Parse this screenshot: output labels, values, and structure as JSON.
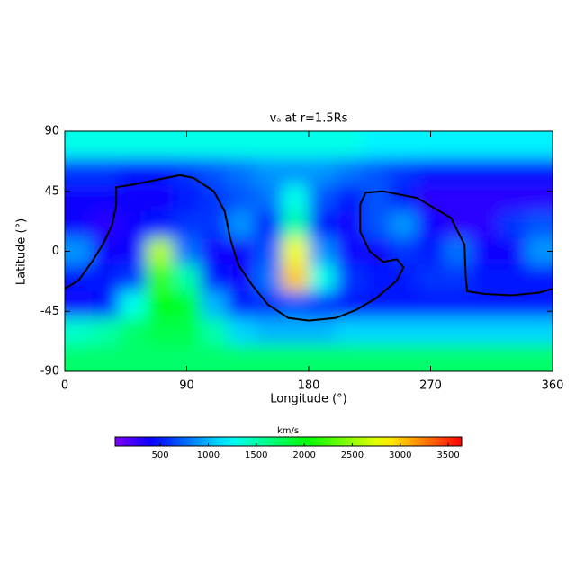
{
  "chart_data": {
    "type": "heatmap",
    "title": "vₐ at r=1.5Rs",
    "x_label": "Longitude (°)",
    "y_label": "Latitude (°)",
    "xlim": [
      0,
      360
    ],
    "ylim": [
      -90,
      90
    ],
    "xticks": [
      0,
      90,
      180,
      270,
      360
    ],
    "yticks": [
      -90,
      -45,
      0,
      45,
      90
    ],
    "x": [
      10,
      30,
      50,
      70,
      90,
      110,
      130,
      150,
      170,
      190,
      210,
      230,
      250,
      270,
      290,
      310,
      330,
      350
    ],
    "y": [
      80,
      60,
      40,
      20,
      0,
      -20,
      -40,
      -60,
      -80
    ],
    "values": [
      [
        1300,
        1300,
        1300,
        1300,
        1300,
        1300,
        1300,
        1300,
        1300,
        1300,
        1300,
        1200,
        1200,
        1200,
        1200,
        1200,
        1200,
        1200
      ],
      [
        600,
        600,
        500,
        500,
        600,
        700,
        800,
        900,
        900,
        900,
        800,
        700,
        600,
        500,
        500,
        500,
        500,
        500
      ],
      [
        400,
        400,
        400,
        400,
        500,
        600,
        700,
        800,
        1300,
        700,
        500,
        700,
        500,
        300,
        300,
        300,
        300,
        300
      ],
      [
        400,
        300,
        400,
        500,
        600,
        600,
        900,
        500,
        1500,
        500,
        400,
        700,
        900,
        400,
        300,
        300,
        600,
        700
      ],
      [
        900,
        400,
        400,
        2600,
        800,
        400,
        400,
        700,
        2800,
        900,
        400,
        400,
        600,
        500,
        800,
        400,
        400,
        900
      ],
      [
        500,
        500,
        600,
        2200,
        1500,
        500,
        400,
        800,
        3000,
        1300,
        600,
        500,
        500,
        600,
        600,
        500,
        500,
        500
      ],
      [
        400,
        500,
        1300,
        2000,
        1900,
        1000,
        500,
        600,
        700,
        600,
        500,
        500,
        500,
        500,
        500,
        500,
        500,
        500
      ],
      [
        1400,
        1500,
        1700,
        1800,
        1800,
        1500,
        1100,
        1000,
        1000,
        1000,
        1100,
        1100,
        1100,
        1100,
        1100,
        1100,
        1100,
        1100
      ],
      [
        1700,
        1700,
        1700,
        1700,
        1700,
        1700,
        1700,
        1700,
        1700,
        1700,
        1700,
        1700,
        1700,
        1700,
        1700,
        1700,
        1700,
        1700
      ]
    ],
    "colorbar_label": "km/s",
    "clim": [
      30,
      3640
    ],
    "cticks": [
      500,
      1000,
      1500,
      2000,
      2500,
      3000,
      3500
    ],
    "contour": {
      "color": "#000000",
      "x": [
        0,
        10,
        20,
        28,
        35,
        38,
        38,
        50,
        70,
        85,
        95,
        110,
        118,
        122,
        128,
        138,
        150,
        165,
        180,
        200,
        215,
        230,
        245,
        250,
        245,
        235,
        225,
        218,
        218,
        222,
        235,
        250,
        260,
        285,
        295,
        296,
        297,
        310,
        330,
        350,
        360
      ],
      "y": [
        -28,
        -22,
        -8,
        5,
        20,
        35,
        48,
        50,
        54,
        57,
        55,
        45,
        30,
        10,
        -10,
        -25,
        -40,
        -50,
        -52,
        -50,
        -44,
        -35,
        -22,
        -12,
        -6,
        -8,
        0,
        15,
        35,
        44,
        45,
        42,
        40,
        25,
        5,
        -20,
        -30,
        -32,
        -33,
        -31,
        -28
      ]
    }
  }
}
